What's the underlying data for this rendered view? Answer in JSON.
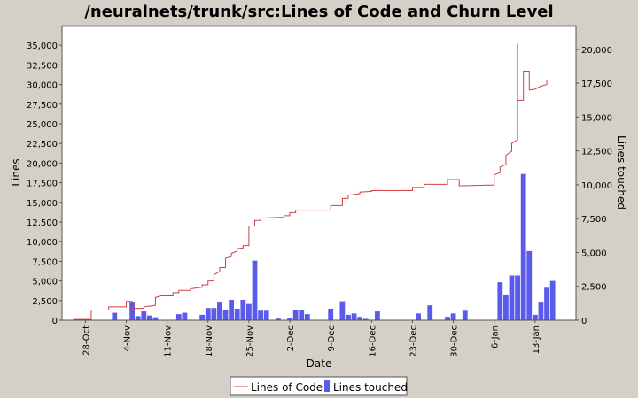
{
  "chart_data": {
    "type": "line",
    "title": "/neuralnets/trunk/src:Lines of Code and Churn Level",
    "xlabel": "Date",
    "ylabel_left": "Lines",
    "ylabel_right": "Lines touched",
    "x_range": [
      "2006-10-24",
      "2007-01-20"
    ],
    "x_ticks": [
      {
        "date": "2006-10-28",
        "label": "28-Oct"
      },
      {
        "date": "2006-11-04",
        "label": "4-Nov"
      },
      {
        "date": "2006-11-11",
        "label": "11-Nov"
      },
      {
        "date": "2006-11-18",
        "label": "18-Nov"
      },
      {
        "date": "2006-11-25",
        "label": "25-Nov"
      },
      {
        "date": "2006-12-02",
        "label": "2-Dec"
      },
      {
        "date": "2006-12-09",
        "label": "9-Dec"
      },
      {
        "date": "2006-12-16",
        "label": "16-Dec"
      },
      {
        "date": "2006-12-23",
        "label": "23-Dec"
      },
      {
        "date": "2006-12-30",
        "label": "30-Dec"
      },
      {
        "date": "2007-01-06",
        "label": "6-Jan"
      },
      {
        "date": "2007-01-13",
        "label": "13-Jan"
      }
    ],
    "y_left": {
      "min": 0,
      "max": 37500,
      "ticks": [
        0,
        2500,
        5000,
        7500,
        10000,
        12500,
        15000,
        17500,
        20000,
        22500,
        25000,
        27500,
        30000,
        32500,
        35000
      ],
      "tick_labels": [
        "0",
        "2,500",
        "5,000",
        "7,500",
        "10,000",
        "12,500",
        "15,000",
        "17,500",
        "20,000",
        "22,500",
        "25,000",
        "27,500",
        "30,000",
        "32,500",
        "35,000"
      ]
    },
    "y_right": {
      "min": 0,
      "max": 21750,
      "ticks": [
        0,
        2500,
        5000,
        7500,
        10000,
        12500,
        15000,
        17500,
        20000
      ],
      "tick_labels": [
        "0",
        "2,500",
        "5,000",
        "7,500",
        "10,000",
        "12,500",
        "15,000",
        "17,500",
        "20,000"
      ]
    },
    "grid": false,
    "legend_position": "bottom-center",
    "series": [
      {
        "name": "Lines of Code",
        "axis": "left",
        "color": "#d04040",
        "style": "step",
        "points": [
          [
            "2006-10-26",
            0
          ],
          [
            "2006-10-26",
            100
          ],
          [
            "2006-10-29",
            100
          ],
          [
            "2006-10-29",
            1300
          ],
          [
            "2006-11-01",
            1300
          ],
          [
            "2006-11-01",
            1700
          ],
          [
            "2006-11-04",
            1700
          ],
          [
            "2006-11-04",
            2400
          ],
          [
            "2006-11-05",
            2400
          ],
          [
            "2006-11-05",
            1500
          ],
          [
            "2006-11-07",
            1500
          ],
          [
            "2006-11-07",
            1700
          ],
          [
            "2006-11-09",
            1900
          ],
          [
            "2006-11-09",
            2900
          ],
          [
            "2006-11-10",
            3100
          ],
          [
            "2006-11-12",
            3100
          ],
          [
            "2006-11-12",
            3500
          ],
          [
            "2006-11-13",
            3500
          ],
          [
            "2006-11-13",
            3800
          ],
          [
            "2006-11-15",
            3800
          ],
          [
            "2006-11-15",
            4000
          ],
          [
            "2006-11-17",
            4200
          ],
          [
            "2006-11-17",
            4500
          ],
          [
            "2006-11-18",
            4500
          ],
          [
            "2006-11-18",
            5000
          ],
          [
            "2006-11-19",
            5000
          ],
          [
            "2006-11-19",
            5800
          ],
          [
            "2006-11-20",
            6200
          ],
          [
            "2006-11-20",
            6700
          ],
          [
            "2006-11-21",
            6700
          ],
          [
            "2006-11-21",
            7900
          ],
          [
            "2006-11-22",
            8100
          ],
          [
            "2006-11-22",
            8500
          ],
          [
            "2006-11-23",
            8800
          ],
          [
            "2006-11-23",
            9100
          ],
          [
            "2006-11-24",
            9200
          ],
          [
            "2006-11-24",
            9500
          ],
          [
            "2006-11-25",
            9500
          ],
          [
            "2006-11-25",
            12000
          ],
          [
            "2006-11-26",
            12000
          ],
          [
            "2006-11-26",
            12700
          ],
          [
            "2006-11-27",
            12700
          ],
          [
            "2006-11-27",
            13000
          ],
          [
            "2006-12-01",
            13100
          ],
          [
            "2006-12-01",
            13300
          ],
          [
            "2006-12-02",
            13300
          ],
          [
            "2006-12-02",
            13700
          ],
          [
            "2006-12-03",
            13700
          ],
          [
            "2006-12-03",
            14000
          ],
          [
            "2006-12-09",
            14000
          ],
          [
            "2006-12-09",
            14600
          ],
          [
            "2006-12-11",
            14600
          ],
          [
            "2006-12-11",
            15500
          ],
          [
            "2006-12-12",
            15500
          ],
          [
            "2006-12-12",
            15900
          ],
          [
            "2006-12-14",
            16100
          ],
          [
            "2006-12-14",
            16300
          ],
          [
            "2006-12-16",
            16400
          ],
          [
            "2006-12-16",
            16500
          ],
          [
            "2006-12-23",
            16500
          ],
          [
            "2006-12-23",
            16900
          ],
          [
            "2006-12-25",
            16900
          ],
          [
            "2006-12-25",
            17300
          ],
          [
            "2006-12-29",
            17300
          ],
          [
            "2006-12-29",
            17900
          ],
          [
            "2006-12-31",
            17900
          ],
          [
            "2006-12-31",
            17100
          ],
          [
            "2007-01-05",
            17200
          ],
          [
            "2007-01-06",
            17200
          ],
          [
            "2007-01-06",
            18500
          ],
          [
            "2007-01-07",
            18800
          ],
          [
            "2007-01-07",
            19500
          ],
          [
            "2007-01-08",
            19800
          ],
          [
            "2007-01-08",
            21000
          ],
          [
            "2007-01-09",
            21500
          ],
          [
            "2007-01-09",
            22500
          ],
          [
            "2007-01-10",
            23000
          ],
          [
            "2007-01-10",
            35200
          ],
          [
            "2007-01-10",
            28000
          ],
          [
            "2007-01-11",
            28000
          ],
          [
            "2007-01-11",
            31500
          ],
          [
            "2007-01-11",
            31700
          ],
          [
            "2007-01-12",
            31700
          ],
          [
            "2007-01-12",
            29300
          ],
          [
            "2007-01-13",
            29400
          ],
          [
            "2007-01-14",
            29800
          ],
          [
            "2007-01-15",
            30000
          ],
          [
            "2007-01-15",
            30500
          ]
        ]
      },
      {
        "name": "Lines touched",
        "axis": "right",
        "color": "#5a5aec",
        "style": "bar",
        "points": [
          [
            "2006-11-02",
            550
          ],
          [
            "2006-11-05",
            1300
          ],
          [
            "2006-11-06",
            300
          ],
          [
            "2006-11-07",
            650
          ],
          [
            "2006-11-08",
            350
          ],
          [
            "2006-11-09",
            220
          ],
          [
            "2006-11-13",
            450
          ],
          [
            "2006-11-14",
            550
          ],
          [
            "2006-11-17",
            400
          ],
          [
            "2006-11-18",
            900
          ],
          [
            "2006-11-19",
            900
          ],
          [
            "2006-11-20",
            1300
          ],
          [
            "2006-11-21",
            750
          ],
          [
            "2006-11-22",
            1500
          ],
          [
            "2006-11-23",
            850
          ],
          [
            "2006-11-24",
            1500
          ],
          [
            "2006-11-25",
            1200
          ],
          [
            "2006-11-26",
            4400
          ],
          [
            "2006-11-27",
            700
          ],
          [
            "2006-11-28",
            700
          ],
          [
            "2006-11-30",
            120
          ],
          [
            "2006-12-02",
            150
          ],
          [
            "2006-12-03",
            750
          ],
          [
            "2006-12-04",
            750
          ],
          [
            "2006-12-05",
            450
          ],
          [
            "2006-12-09",
            850
          ],
          [
            "2006-12-11",
            1400
          ],
          [
            "2006-12-12",
            400
          ],
          [
            "2006-12-13",
            500
          ],
          [
            "2006-12-14",
            250
          ],
          [
            "2006-12-15",
            100
          ],
          [
            "2006-12-17",
            650
          ],
          [
            "2006-12-24",
            500
          ],
          [
            "2006-12-26",
            1100
          ],
          [
            "2006-12-29",
            250
          ],
          [
            "2006-12-30",
            500
          ],
          [
            "2007-01-01",
            700
          ],
          [
            "2007-01-07",
            2800
          ],
          [
            "2007-01-08",
            1900
          ],
          [
            "2007-01-09",
            3300
          ],
          [
            "2007-01-10",
            3300
          ],
          [
            "2007-01-11",
            10800
          ],
          [
            "2007-01-12",
            5100
          ],
          [
            "2007-01-13",
            400
          ],
          [
            "2007-01-14",
            1300
          ],
          [
            "2007-01-15",
            2400
          ],
          [
            "2007-01-16",
            2900
          ]
        ]
      }
    ]
  }
}
